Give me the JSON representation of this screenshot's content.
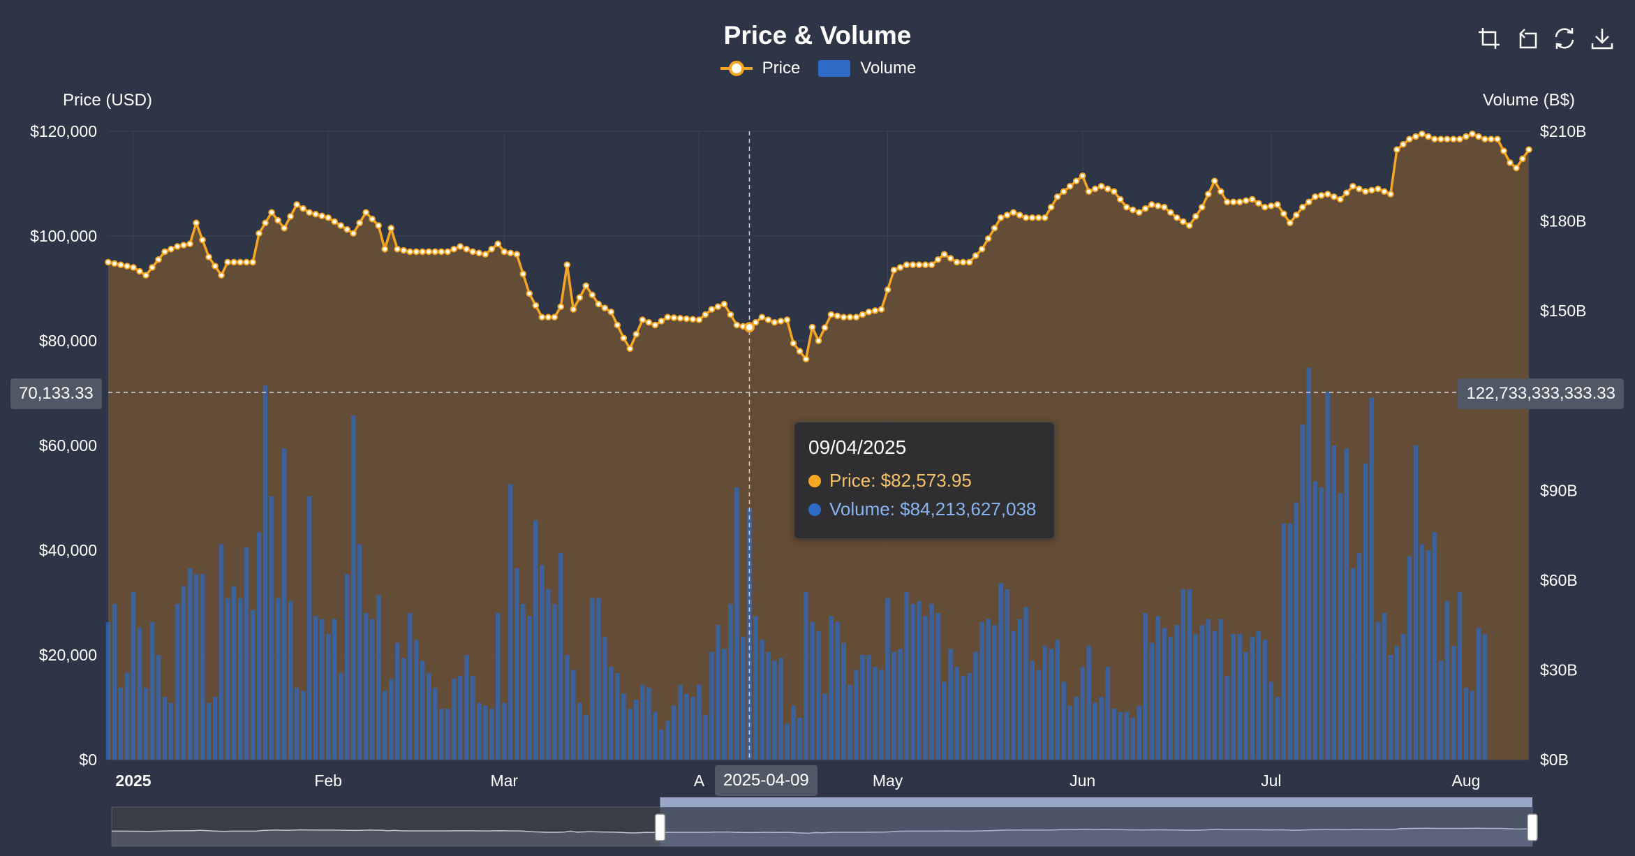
{
  "chart_data": {
    "type": "bar+line",
    "title": "Price & Volume",
    "legend": [
      "Price",
      "Volume"
    ],
    "colors": {
      "price": "#f5a623",
      "volume": "#2e6bc6",
      "area": "#6b5136",
      "background": "#2e3547",
      "tooltip_price": "#f5c26b",
      "tooltip_volume": "#8ab4f0"
    },
    "y_left": {
      "label": "Price (USD)",
      "min": 0,
      "max": 120000,
      "ticks": [
        "$0",
        "$20,000",
        "$40,000",
        "$60,000",
        "$80,000",
        "$100,000",
        "$120,000"
      ]
    },
    "y_right": {
      "label": "Volume (B$)",
      "min": 0,
      "max": 210,
      "ticks": [
        "$0B",
        "$30B",
        "$60B",
        "$90B",
        "$120B",
        "$150B",
        "$180B",
        "$210B"
      ]
    },
    "x_range": [
      "2024-12-28",
      "2025-08-11"
    ],
    "x_ticks": [
      {
        "date": "2025-01-01",
        "label": "2025",
        "bold": true
      },
      {
        "date": "2025-02-01",
        "label": "Feb",
        "bold": false
      },
      {
        "date": "2025-03-01",
        "label": "Mar",
        "bold": false
      },
      {
        "date": "2025-04-01",
        "label": "A",
        "bold": false
      },
      {
        "date": "2025-05-01",
        "label": "May",
        "bold": false
      },
      {
        "date": "2025-06-01",
        "label": "Jun",
        "bold": false
      },
      {
        "date": "2025-07-01",
        "label": "Jul",
        "bold": false
      },
      {
        "date": "2025-08-01",
        "label": "Aug",
        "bold": false
      }
    ],
    "price_keys": [
      [
        "2024-12-28",
        95000
      ],
      [
        "2025-01-01",
        94000
      ],
      [
        "2025-01-03",
        92500
      ],
      [
        "2025-01-06",
        97000
      ],
      [
        "2025-01-08",
        98000
      ],
      [
        "2025-01-10",
        98500
      ],
      [
        "2025-01-11",
        102500
      ],
      [
        "2025-01-13",
        96000
      ],
      [
        "2025-01-15",
        92500
      ],
      [
        "2025-01-16",
        95000
      ],
      [
        "2025-01-20",
        95000
      ],
      [
        "2025-01-21",
        100500
      ],
      [
        "2025-01-23",
        104500
      ],
      [
        "2025-01-25",
        101500
      ],
      [
        "2025-01-27",
        106000
      ],
      [
        "2025-01-29",
        104500
      ],
      [
        "2025-02-01",
        103500
      ],
      [
        "2025-02-03",
        102000
      ],
      [
        "2025-02-05",
        100500
      ],
      [
        "2025-02-07",
        104500
      ],
      [
        "2025-02-09",
        102000
      ],
      [
        "2025-02-10",
        97500
      ],
      [
        "2025-02-11",
        101500
      ],
      [
        "2025-02-12",
        97500
      ],
      [
        "2025-02-14",
        97000
      ],
      [
        "2025-02-20",
        97000
      ],
      [
        "2025-02-22",
        98000
      ],
      [
        "2025-02-24",
        97000
      ],
      [
        "2025-02-26",
        96500
      ],
      [
        "2025-02-28",
        98500
      ],
      [
        "2025-03-01",
        97000
      ],
      [
        "2025-03-03",
        96500
      ],
      [
        "2025-03-05",
        89000
      ],
      [
        "2025-03-07",
        84500
      ],
      [
        "2025-03-09",
        84500
      ],
      [
        "2025-03-10",
        86500
      ],
      [
        "2025-03-11",
        94500
      ],
      [
        "2025-03-12",
        86000
      ],
      [
        "2025-03-14",
        90500
      ],
      [
        "2025-03-16",
        87000
      ],
      [
        "2025-03-18",
        85500
      ],
      [
        "2025-03-20",
        80500
      ],
      [
        "2025-03-21",
        78500
      ],
      [
        "2025-03-23",
        84000
      ],
      [
        "2025-03-25",
        83000
      ],
      [
        "2025-03-27",
        84500
      ],
      [
        "2025-04-01",
        84000
      ],
      [
        "2025-04-03",
        86000
      ],
      [
        "2025-04-05",
        87000
      ],
      [
        "2025-04-07",
        83000
      ],
      [
        "2025-04-09",
        82500
      ],
      [
        "2025-04-11",
        84500
      ],
      [
        "2025-04-13",
        83500
      ],
      [
        "2025-04-15",
        84000
      ],
      [
        "2025-04-16",
        79500
      ],
      [
        "2025-04-17",
        78000
      ],
      [
        "2025-04-18",
        76500
      ],
      [
        "2025-04-19",
        82574
      ],
      [
        "2025-04-20",
        80000
      ],
      [
        "2025-04-22",
        85000
      ],
      [
        "2025-04-24",
        84500
      ],
      [
        "2025-04-26",
        84500
      ],
      [
        "2025-04-28",
        85500
      ],
      [
        "2025-04-30",
        86000
      ],
      [
        "2025-05-02",
        93500
      ],
      [
        "2025-05-04",
        94500
      ],
      [
        "2025-05-06",
        94500
      ],
      [
        "2025-05-08",
        94500
      ],
      [
        "2025-05-10",
        96500
      ],
      [
        "2025-05-12",
        95000
      ],
      [
        "2025-05-14",
        95000
      ],
      [
        "2025-05-16",
        97500
      ],
      [
        "2025-05-19",
        103500
      ],
      [
        "2025-05-21",
        104500
      ],
      [
        "2025-05-23",
        103500
      ],
      [
        "2025-05-26",
        103500
      ],
      [
        "2025-05-28",
        107500
      ],
      [
        "2025-05-30",
        109500
      ],
      [
        "2025-06-01",
        111500
      ],
      [
        "2025-06-02",
        108500
      ],
      [
        "2025-06-04",
        109500
      ],
      [
        "2025-06-06",
        108500
      ],
      [
        "2025-06-08",
        105500
      ],
      [
        "2025-06-10",
        104500
      ],
      [
        "2025-06-12",
        106000
      ],
      [
        "2025-06-14",
        105500
      ],
      [
        "2025-06-16",
        103500
      ],
      [
        "2025-06-18",
        102000
      ],
      [
        "2025-06-20",
        105500
      ],
      [
        "2025-06-22",
        110500
      ],
      [
        "2025-06-24",
        106500
      ],
      [
        "2025-06-26",
        106500
      ],
      [
        "2025-06-28",
        107000
      ],
      [
        "2025-06-30",
        105500
      ],
      [
        "2025-07-02",
        106000
      ],
      [
        "2025-07-04",
        102500
      ],
      [
        "2025-07-06",
        105500
      ],
      [
        "2025-07-08",
        107500
      ],
      [
        "2025-07-10",
        108000
      ],
      [
        "2025-07-12",
        107000
      ],
      [
        "2025-07-14",
        109500
      ],
      [
        "2025-07-16",
        108500
      ],
      [
        "2025-07-18",
        109000
      ],
      [
        "2025-07-20",
        108000
      ],
      [
        "2025-07-21",
        116500
      ],
      [
        "2025-07-23",
        118500
      ],
      [
        "2025-07-25",
        119500
      ],
      [
        "2025-07-27",
        118500
      ],
      [
        "2025-07-29",
        118500
      ],
      [
        "2025-07-31",
        118500
      ],
      [
        "2025-08-02",
        119500
      ],
      [
        "2025-08-04",
        118500
      ],
      [
        "2025-08-06",
        118500
      ],
      [
        "2025-08-08",
        114000
      ],
      [
        "2025-08-09",
        113000
      ],
      [
        "2025-08-11",
        116500
      ]
    ],
    "volume_daily_B": [
      46,
      52,
      24,
      29,
      56,
      44,
      24,
      46,
      35,
      21,
      19,
      52,
      58,
      64,
      62,
      62,
      19,
      21,
      72,
      54,
      58,
      54,
      71,
      50,
      76,
      125,
      88,
      54,
      104,
      53,
      24,
      23,
      88,
      48,
      47,
      42,
      47,
      29,
      62,
      115,
      72,
      49,
      47,
      55,
      23,
      27,
      39,
      34,
      49,
      40,
      33,
      29,
      24,
      17,
      17,
      27,
      28,
      35,
      28,
      19,
      18,
      17,
      49,
      19,
      92,
      64,
      52,
      48,
      80,
      65,
      57,
      52,
      69,
      35,
      30,
      19,
      15,
      54,
      54,
      41,
      31,
      29,
      22,
      17,
      20,
      25,
      24,
      16,
      10,
      13,
      18,
      25,
      22,
      21,
      25,
      15,
      36,
      45,
      37,
      52,
      91,
      41,
      84,
      48,
      40,
      36,
      33,
      34,
      12,
      18,
      14,
      56,
      46,
      43,
      22,
      48,
      46,
      39,
      25,
      30,
      35,
      35,
      31,
      30,
      54,
      36,
      37,
      56,
      52,
      53,
      48,
      52,
      49,
      26,
      37,
      31,
      28,
      29,
      36,
      46,
      47,
      45,
      59,
      57,
      43,
      47,
      51,
      33,
      30,
      38,
      37,
      40,
      26,
      18,
      21,
      31,
      38,
      19,
      21,
      31,
      17,
      16,
      16,
      14,
      18,
      49,
      39,
      48,
      44,
      41,
      45,
      57,
      57,
      42,
      45,
      47,
      43,
      47,
      28,
      42,
      42,
      36,
      41,
      43,
      40,
      26,
      21,
      79,
      79,
      86,
      112,
      131,
      93,
      91,
      123,
      105,
      89,
      104,
      64,
      69,
      99,
      121,
      46,
      49,
      35,
      38,
      42,
      68,
      105,
      72,
      70,
      76,
      33,
      53,
      38,
      56,
      24,
      23,
      44,
      42
    ],
    "crosshair": {
      "date": "2025-04-09",
      "y_left_value": "70,133.33",
      "y_right_value": "122,733,333,333.33",
      "x_label": "2025-04-09"
    },
    "tooltip": {
      "date": "09/04/2025",
      "price_label": "Price: $82,573.95",
      "volume_label": "Volume: $84,213,627,038"
    },
    "zoom_window": {
      "start": 0.386,
      "end": 1.0
    }
  },
  "toolbar": {
    "icons": [
      "zoom-select-icon",
      "zoom-reset-icon",
      "restore-icon",
      "download-icon"
    ]
  }
}
